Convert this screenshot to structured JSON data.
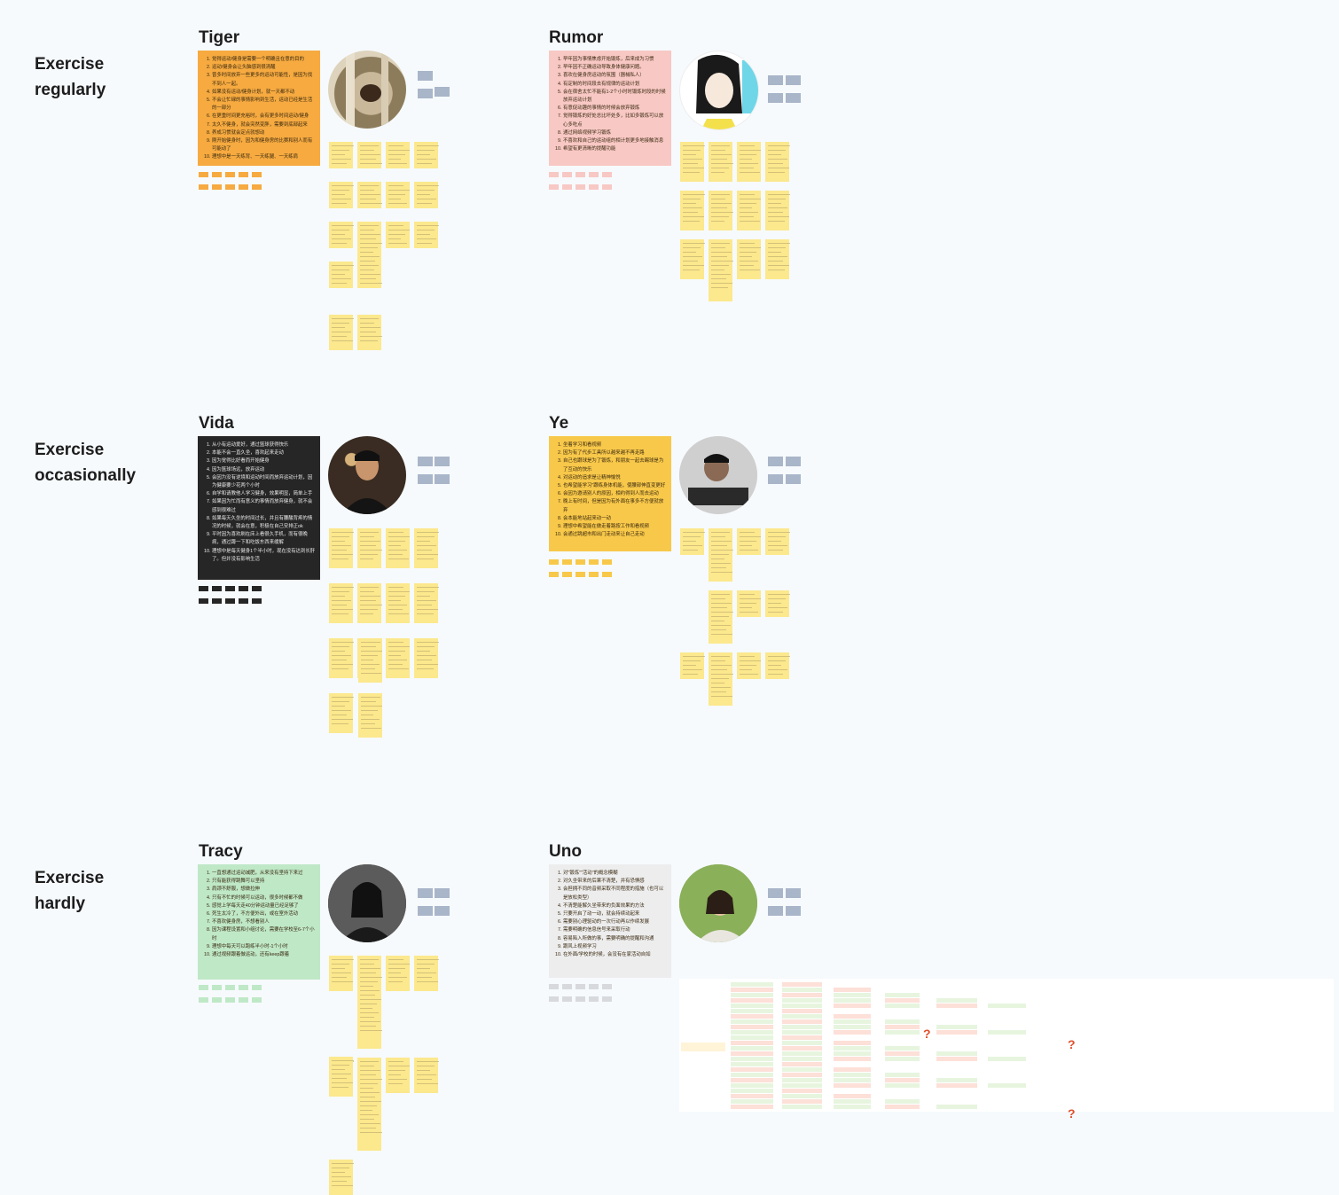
{
  "rows": [
    {
      "label": "Exercise\nregularly"
    },
    {
      "label": "Exercise\noccasionally"
    },
    {
      "label": "Exercise\nhardly"
    }
  ],
  "personas": [
    {
      "name": "Tiger",
      "card_color": "#f6aa40",
      "tag_color": "#f6aa40",
      "items": [
        "觉得运动/健身是需要一个明确且在意的目的",
        "运动/健身会让头脑感到很清醒",
        "曾多时间放弃一些更多的运动可能性，是因为找不到人一起。",
        "如果没有运动/健身计划，就一天都不动",
        "不会让忙碌的事情影响到生活，运动已经是生活的一部分",
        "在更重时间更充裕时，会有更多时间运动/健身",
        "太久不健身，就会突然变胖，需要到底部起来",
        "养成习惯就会定点就想动",
        "刚开始健身时，因为和健身房的比赛和别人而有可能动了",
        "理想中是一天练背、一天练腿、一天练肩"
      ]
    },
    {
      "name": "Rumor",
      "card_color": "#f8c8c4",
      "tag_color": "#f8c8c4",
      "items": [
        "早年因为事情焦虑开始锻炼，后来成为习惯",
        "早年因不正确运动导致身体健康问题。",
        "喜欢在健身房运动的氛围（器械私人）",
        "有定制的时间段去有规律的运动计划",
        "会在宿舍太忙不能有1-2个小时时锻炼时段的时候放弃运动计划",
        "有意促动趣的事情的时候会放弃锻炼",
        "觉得锻炼的好处总比坏处多，比如多锻炼可以放心多吃点",
        "通过网络视频学习锻炼",
        "不喜欢和自己的运动组的相计划更多地接触消息",
        "希望有更清晰的提醒功能"
      ]
    },
    {
      "name": "Vida",
      "card_color": "#262626",
      "tag_color": "#262626",
      "items": [
        "从小有运动爱好，通过篮球获得快乐",
        "本能不会一直久坐，喜欢起来走动",
        "因为觉得比好看而开始健身",
        "因为篮球场远，放弃运动",
        "会因为没有逆境和运动时间而放弃运动计划，因为健康要少花两个小时",
        "自学和请教他人学习健身，效果明显，简单上手",
        "如果因为忙而有意义的事情而放弃健身，就不会感到很难过",
        "如果每天久坐的时间过长，并且有腰酸背疼的情况的时候，就会在意，积极在自己安排正ok",
        "平时因为喜欢刷在床上看很久手机，而有很晚病，通过蹲一下和吃饭东西来缓解",
        "理想中是每天健身1个半小时，现在没有达到长肝了。但并没有影响生活"
      ]
    },
    {
      "name": "Ye",
      "card_color": "#f8c84a",
      "tag_color": "#f8c84a",
      "items": [
        "坐着学习和看视频",
        "因为有了代步工具所以越来越不再走路",
        "自己也跟球是为了锻炼，和朋友一起去踢球是为了互动的快乐",
        "对运动的追求是让精神愉悦",
        "也希望能学习\"跟练身体机能，使腰部伸直变更好",
        "会因为邀请别人的原因，相约得到人而去运动",
        "晚上有时间，但是因为有外面在事多不方便就放弃",
        "会本能地站起来动一动",
        "理想中希望能在做走着路按工作和看视频",
        "会通过跳超市和出门走动来让自己走动"
      ]
    },
    {
      "name": "Tracy",
      "card_color": "#bfe8c7",
      "tag_color": "#bfe8c7",
      "items": [
        "一直想通过运动减肥，从来没有坚持下来过",
        "只有能获得跳舞可以坚持",
        "肩颈不舒服，想做拉伸",
        "只有不忙的时候可以运动，很多时候都不做",
        "感觉上学每天走40分钟运动量已经足够了",
        "死生太冷了，不方便外出，或在室外活动",
        "不喜欢健身房，不想看别人",
        "因为课程设置和小组讨论，需要在学校至6-7个小时",
        "理想中每天可以跑练半小时-1个小时",
        "通过视频跟着做运动，还有keep跟着"
      ]
    },
    {
      "name": "Uno",
      "card_color": "#ededee",
      "tag_color": "#d7d9dd",
      "items": [
        "对\"锻炼\"\"活动\"的概念模糊",
        "对久坐带来的后果不清楚，并有恐惧感",
        "会担拥不同的音频采取不同程度的措施（也可以是放松类型）",
        "不清楚能解久坐带来的负面效果的方法",
        "只要开启了动一动，就会持续动起来",
        "需要别心理驱动的一次行动再以作续发展",
        "需要明确的信息信号来采取行动",
        "容易陷入所做的事，需要明确的提醒和沟通",
        "跟风上视频学习",
        "在外面/学校的时候，会没有在家活动自如"
      ]
    }
  ],
  "mindmap": {
    "question_mark": "?"
  }
}
